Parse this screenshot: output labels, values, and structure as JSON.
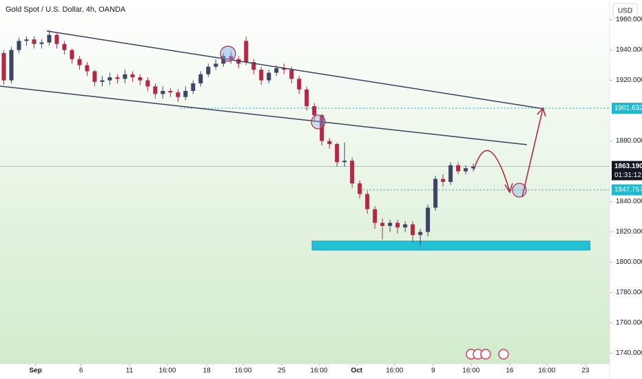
{
  "chart_data": {
    "type": "candlestick",
    "title": "Gold Spot / U.S. Dollar, 4h, OANDA",
    "currency": "USD",
    "x": [
      0,
      1,
      2,
      3,
      4,
      5,
      6,
      7,
      8,
      9,
      10,
      11,
      12,
      13,
      14,
      15,
      16,
      17,
      18,
      19,
      20,
      21,
      22,
      23,
      24,
      25,
      26,
      27,
      28,
      29,
      30,
      31,
      32,
      33,
      34,
      35,
      36,
      37,
      38,
      39,
      40,
      41,
      42,
      43,
      44,
      45,
      46,
      47,
      48,
      49,
      50,
      51,
      52,
      53,
      54,
      55,
      56,
      57,
      58,
      59,
      60,
      61,
      62
    ],
    "open": [
      1938,
      1920,
      1940,
      1946,
      1947,
      1944,
      1945,
      1950,
      1944,
      1940,
      1934,
      1930,
      1926,
      1919,
      1920,
      1922,
      1921,
      1924,
      1922,
      1920,
      1916,
      1911,
      1913,
      1912,
      1909,
      1913,
      1918,
      1924,
      1929,
      1931,
      1936,
      1934,
      1946,
      1932,
      1927,
      1920,
      1925,
      1928,
      1927,
      1921,
      1914,
      1903,
      1897,
      1880,
      1878,
      1866,
      1867,
      1852,
      1845,
      1835,
      1826,
      1824,
      1826,
      1823,
      1825,
      1818,
      1820,
      1836,
      1855,
      1853,
      1864,
      1860,
      1862
    ],
    "high": [
      1940,
      1942,
      1948,
      1949,
      1949,
      1947,
      1953,
      1951,
      1946,
      1941,
      1936,
      1932,
      1927,
      1923,
      1925,
      1924,
      1927,
      1926,
      1924,
      1922,
      1918,
      1916,
      1915,
      1914,
      1916,
      1920,
      1926,
      1931,
      1934,
      1938,
      1939,
      1936,
      1949,
      1934,
      1929,
      1927,
      1930,
      1931,
      1929,
      1923,
      1916,
      1905,
      1898,
      1882,
      1879,
      1879,
      1869,
      1854,
      1847,
      1837,
      1829,
      1828,
      1828,
      1827,
      1827,
      1822,
      1838,
      1857,
      1858,
      1866,
      1866,
      1864,
      1865
    ],
    "low": [
      1917,
      1918,
      1938,
      1943,
      1941,
      1941,
      1943,
      1941,
      1937,
      1931,
      1927,
      1923,
      1916,
      1916,
      1917,
      1918,
      1918,
      1919,
      1917,
      1913,
      1908,
      1908,
      1909,
      1906,
      1907,
      1911,
      1916,
      1922,
      1927,
      1929,
      1931,
      1928,
      1930,
      1924,
      1917,
      1918,
      1923,
      1924,
      1918,
      1911,
      1900,
      1893,
      1877,
      1875,
      1863,
      1863,
      1849,
      1842,
      1832,
      1822,
      1815,
      1820,
      1819,
      1820,
      1813,
      1811,
      1817,
      1834,
      1850,
      1851,
      1858,
      1858,
      1860
    ],
    "close": [
      1920,
      1940,
      1946,
      1947,
      1944,
      1945,
      1950,
      1944,
      1940,
      1934,
      1930,
      1926,
      1919,
      1920,
      1922,
      1921,
      1924,
      1922,
      1920,
      1916,
      1911,
      1913,
      1912,
      1909,
      1913,
      1918,
      1924,
      1929,
      1931,
      1936,
      1934,
      1931,
      1932,
      1927,
      1920,
      1925,
      1928,
      1927,
      1921,
      1914,
      1903,
      1897,
      1880,
      1878,
      1866,
      1867,
      1852,
      1845,
      1835,
      1826,
      1824,
      1826,
      1823,
      1825,
      1818,
      1820,
      1836,
      1855,
      1853,
      1864,
      1860,
      1862,
      1863.19
    ],
    "up_color": "#3d4466",
    "down_color": "#b22846",
    "xlim": [
      -0.5,
      80
    ],
    "ylim": [
      1733,
      1973
    ],
    "yticks": [
      {
        "value": 1960,
        "label": "1960.000"
      },
      {
        "value": 1940,
        "label": "1940.000"
      },
      {
        "value": 1920,
        "label": "1920.000"
      },
      {
        "value": 1880,
        "label": "1880.000"
      },
      {
        "value": 1840,
        "label": "1840.000"
      },
      {
        "value": 1820,
        "label": "1820.000"
      },
      {
        "value": 1800,
        "label": "1800.000"
      },
      {
        "value": 1780,
        "label": "1780.000"
      },
      {
        "value": 1760,
        "label": "1760.000"
      },
      {
        "value": 1740,
        "label": "1740.000"
      }
    ],
    "xticks": [
      {
        "value": 4.2,
        "label": "Sep"
      },
      {
        "value": 10.2,
        "label": "6"
      },
      {
        "value": 16.6,
        "label": "11"
      },
      {
        "value": 21.6,
        "label": "16:00"
      },
      {
        "value": 26.8,
        "label": "18"
      },
      {
        "value": 31.6,
        "label": "16:00"
      },
      {
        "value": 36.7,
        "label": "25"
      },
      {
        "value": 41.6,
        "label": "16:00"
      },
      {
        "value": 46.6,
        "label": "Oct"
      },
      {
        "value": 51.6,
        "label": "16:00"
      },
      {
        "value": 56.7,
        "label": "9"
      },
      {
        "value": 61.7,
        "label": "16:00"
      },
      {
        "value": 66.8,
        "label": "16"
      },
      {
        "value": 71.7,
        "label": "16:00"
      },
      {
        "value": 76.8,
        "label": "23"
      }
    ],
    "levels": [
      {
        "value": 1901.632,
        "label": "1901.632",
        "from": 23.3,
        "color": "#22b8cf"
      },
      {
        "value": 1847.757,
        "label": "1847.757",
        "from": 47.4,
        "color": "#22b8cf"
      }
    ],
    "last_price": {
      "value": 1863.19,
      "label": "1863.190",
      "countdown": "01:31:12",
      "color": "#131722"
    },
    "zone": {
      "top": 1814,
      "bottom": 1808,
      "x": [
        40.7,
        77.4
      ],
      "color": "#22c1d6"
    }
  }
}
